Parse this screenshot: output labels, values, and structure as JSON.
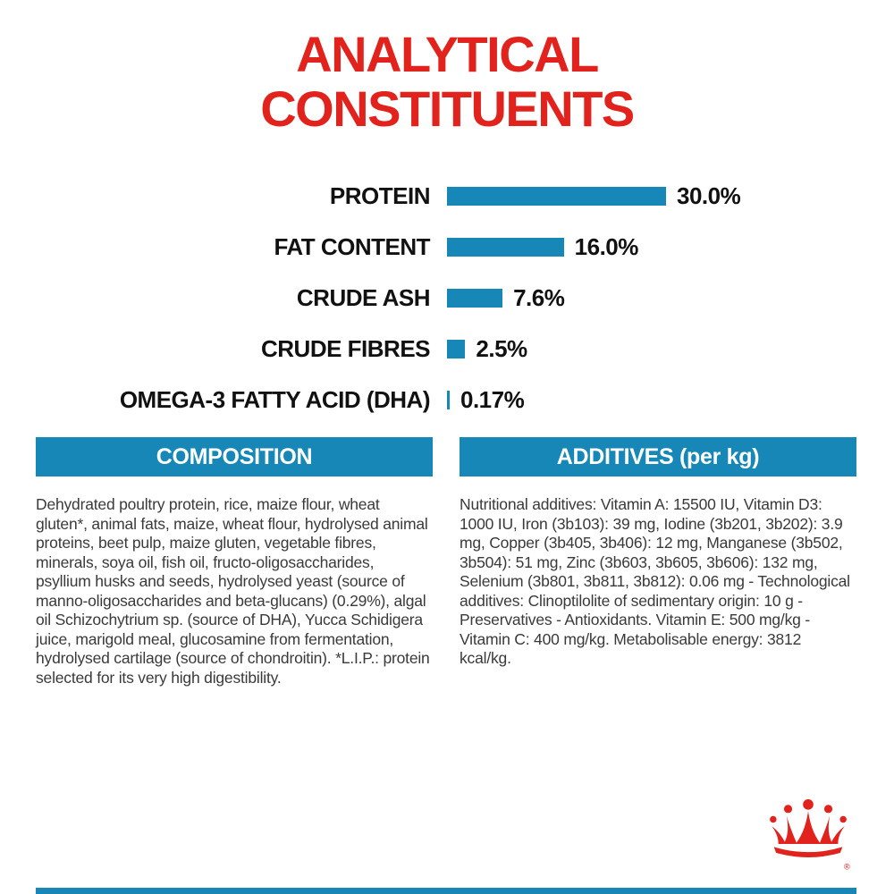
{
  "page": {
    "title_line1": "ANALYTICAL",
    "title_line2": "CONSTITUENTS"
  },
  "chart_data": {
    "type": "bar",
    "orientation": "horizontal",
    "title": "ANALYTICAL CONSTITUENTS",
    "max_value": 30,
    "bar_color": "#1787B8",
    "categories": [
      "PROTEIN",
      "FAT CONTENT",
      "CRUDE ASH",
      "CRUDE FIBRES",
      "OMEGA-3 FATTY ACID (DHA)"
    ],
    "values": [
      30.0,
      16.0,
      7.6,
      2.5,
      0.17
    ],
    "rows": [
      {
        "label": "PROTEIN",
        "value": 30.0,
        "display": "30.0%"
      },
      {
        "label": "FAT CONTENT",
        "value": 16.0,
        "display": "16.0%"
      },
      {
        "label": "CRUDE ASH",
        "value": 7.6,
        "display": "7.6%"
      },
      {
        "label": "CRUDE FIBRES",
        "value": 2.5,
        "display": "2.5%"
      },
      {
        "label": "OMEGA-3 FATTY ACID (DHA)",
        "value": 0.17,
        "display": "0.17%"
      }
    ]
  },
  "sections": {
    "composition": {
      "header": "COMPOSITION",
      "body": "Dehydrated poultry protein, rice, maize flour, wheat gluten*, animal fats, maize, wheat flour, hydrolysed animal proteins, beet pulp, maize gluten, vegetable fibres, minerals, soya oil, fish oil, fructo-oligosaccharides, psyllium husks and seeds, hydrolysed yeast (source of manno-oligosaccharides and beta-glucans) (0.29%), algal oil Schizochytrium sp. (source of DHA), Yucca Schidigera juice, marigold meal, glucosamine from fermentation, hydrolysed cartilage (source of chondroitin). *L.I.P.: protein selected for its very high digestibility."
    },
    "additives": {
      "header": "ADDITIVES (per kg)",
      "body": "Nutritional additives: Vitamin A: 15500 IU, Vitamin D3: 1000 IU, Iron (3b103): 39 mg, Iodine (3b201, 3b202): 3.9 mg, Copper (3b405, 3b406): 12 mg, Manganese (3b502, 3b504): 51 mg, Zinc (3b603, 3b605, 3b606): 132 mg, Selenium (3b801, 3b811, 3b812): 0.06 mg - Technological additives: Clinoptilolite of sedimentary origin: 10 g - Preservatives - Antioxidants. Vitamin E: 500 mg/kg - Vitamin C: 400 mg/kg. Metabolisable energy: 3812 kcal/kg."
    }
  },
  "branding": {
    "logo": "royal-canin-crown",
    "registered_mark": "®",
    "colors": {
      "red": "#E2221C",
      "blue": "#1787B8"
    }
  }
}
